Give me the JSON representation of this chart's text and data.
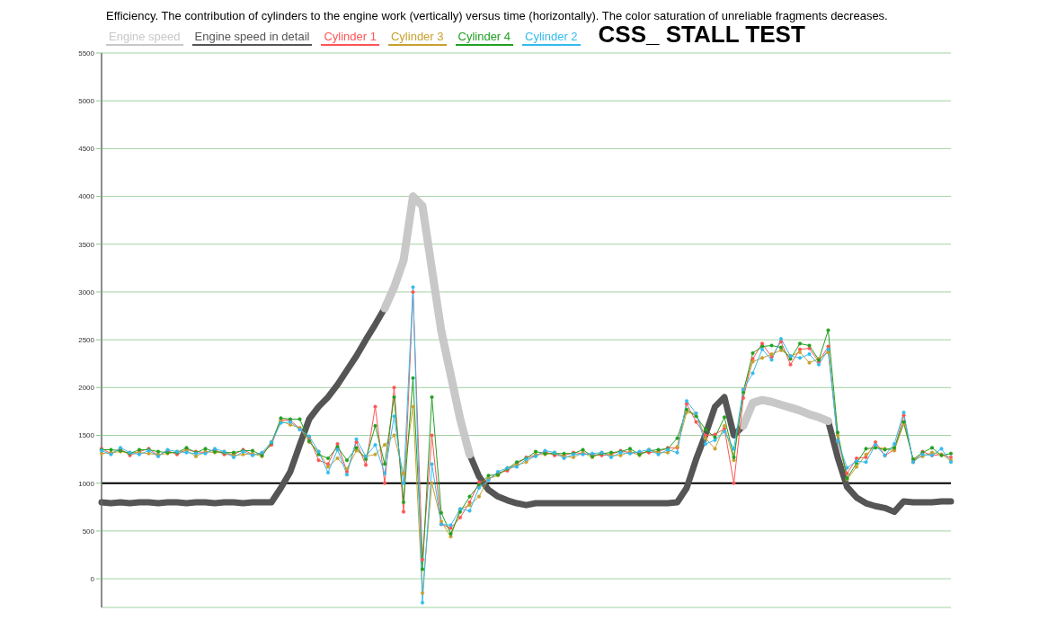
{
  "chart_data": {
    "type": "line",
    "title": "Efficiency. The contribution of cylinders to the engine work (vertically) versus time (horizontally). The color saturation of unreliable fragments decreases.",
    "subtitle": "CSS_ STALL TEST",
    "categories": [
      null,
      null,
      null,
      null,
      null,
      null,
      null,
      null,
      null,
      null,
      null,
      null,
      null,
      null,
      null,
      null,
      null,
      null,
      null,
      null,
      null,
      null,
      null,
      null,
      null,
      null,
      null,
      null,
      null,
      null,
      null,
      null,
      null,
      null,
      null,
      null,
      null,
      null,
      null,
      null,
      null,
      null,
      null,
      null,
      null,
      null,
      null,
      null,
      null,
      null,
      null,
      null,
      null,
      null,
      null,
      null,
      null,
      null,
      null,
      null,
      null,
      null,
      null,
      null,
      null,
      null,
      null,
      null,
      null,
      null,
      null,
      null,
      null,
      null,
      null,
      null,
      null,
      null,
      null,
      null,
      null,
      null,
      null,
      null,
      null,
      null,
      null,
      null,
      null,
      null,
      null
    ],
    "series": [
      {
        "name": "Engine speed",
        "color": "#c8c8c8",
        "marker": "none",
        "values": [
          null,
          null,
          null,
          null,
          null,
          null,
          null,
          null,
          null,
          null,
          null,
          null,
          null,
          null,
          null,
          null,
          null,
          null,
          null,
          null,
          null,
          null,
          null,
          null,
          null,
          null,
          null,
          null,
          null,
          null,
          2830,
          3050,
          3330,
          4000,
          3900,
          3240,
          2590,
          2130,
          1670,
          1300,
          null,
          null,
          null,
          null,
          null,
          null,
          null,
          null,
          null,
          null,
          null,
          null,
          null,
          null,
          null,
          null,
          null,
          null,
          null,
          null,
          null,
          null,
          null,
          null,
          null,
          null,
          null,
          null,
          1600,
          1840,
          1870,
          1850,
          1820,
          1790,
          1760,
          1720,
          1690,
          1650,
          null,
          null,
          null,
          null,
          null,
          null,
          null,
          null,
          null,
          null,
          null,
          null,
          null
        ]
      },
      {
        "name": "Engine speed in detail",
        "color": "#555555",
        "marker": "none",
        "values": [
          800,
          790,
          800,
          790,
          800,
          800,
          790,
          800,
          800,
          790,
          800,
          800,
          790,
          800,
          800,
          790,
          800,
          800,
          800,
          950,
          1120,
          1400,
          1670,
          1800,
          1900,
          2030,
          2180,
          2330,
          2500,
          2660,
          2830,
          null,
          null,
          null,
          null,
          null,
          null,
          null,
          null,
          1300,
          1070,
          930,
          860,
          820,
          790,
          770,
          790,
          790,
          790,
          790,
          790,
          790,
          790,
          790,
          790,
          790,
          790,
          790,
          790,
          790,
          790,
          800,
          950,
          1250,
          1510,
          1800,
          1900,
          1500,
          1600,
          null,
          null,
          null,
          null,
          null,
          null,
          null,
          null,
          1650,
          1270,
          960,
          850,
          790,
          760,
          740,
          700,
          810,
          800,
          800,
          800,
          810,
          810
        ]
      },
      {
        "name": "Cylinder 1",
        "color": "#ff5555",
        "values": [
          1360,
          1310,
          1360,
          1290,
          1330,
          1360,
          1290,
          1340,
          1300,
          1350,
          1330,
          1320,
          1350,
          1300,
          1300,
          1350,
          1300,
          1310,
          1400,
          1660,
          1660,
          1570,
          1480,
          1240,
          1200,
          1410,
          1120,
          1430,
          1190,
          1800,
          1000,
          2000,
          700,
          3000,
          200,
          1500,
          570,
          530,
          640,
          800,
          1010,
          1040,
          1110,
          1130,
          1200,
          1270,
          1290,
          1330,
          1290,
          1290,
          1320,
          1310,
          1300,
          1290,
          1300,
          1340,
          1320,
          1320,
          1320,
          1330,
          1370,
          1370,
          1830,
          1640,
          1500,
          1510,
          1570,
          1000,
          1890,
          2300,
          2460,
          2320,
          2480,
          2240,
          2400,
          2410,
          2270,
          2430,
          1440,
          1100,
          1260,
          1270,
          1430,
          1290,
          1350,
          1710,
          1220,
          1330,
          1290,
          1300,
          1270
        ]
      },
      {
        "name": "Cylinder 3",
        "color": "#c8a030",
        "values": [
          1310,
          1320,
          1330,
          1320,
          1320,
          1310,
          1300,
          1310,
          1330,
          1340,
          1280,
          1330,
          1320,
          1330,
          1290,
          1300,
          1310,
          1280,
          1430,
          1650,
          1610,
          1580,
          1430,
          1330,
          1170,
          1260,
          1150,
          1340,
          1280,
          1300,
          1400,
          1500,
          1100,
          1800,
          -150,
          1000,
          600,
          440,
          730,
          770,
          860,
          1050,
          1080,
          1160,
          1190,
          1220,
          1300,
          1300,
          1320,
          1280,
          1270,
          1320,
          1270,
          1320,
          1290,
          1290,
          1330,
          1290,
          1350,
          1320,
          1320,
          1380,
          1740,
          1730,
          1470,
          1360,
          1600,
          1240,
          1980,
          2270,
          2310,
          2350,
          2390,
          2330,
          2370,
          2260,
          2300,
          2370,
          1500,
          1040,
          1170,
          1300,
          1380,
          1360,
          1340,
          1620,
          1250,
          1280,
          1320,
          1300,
          1240
        ]
      },
      {
        "name": "Cylinder 4",
        "color": "#22a022",
        "values": [
          1350,
          1350,
          1340,
          1310,
          1350,
          1350,
          1330,
          1320,
          1320,
          1370,
          1320,
          1360,
          1330,
          1320,
          1320,
          1340,
          1340,
          1290,
          1420,
          1680,
          1670,
          1670,
          1440,
          1300,
          1260,
          1380,
          1240,
          1370,
          1250,
          1600,
          1200,
          1900,
          800,
          2100,
          100,
          1900,
          690,
          470,
          700,
          860,
          980,
          1080,
          1090,
          1150,
          1220,
          1260,
          1330,
          1310,
          1310,
          1310,
          1310,
          1350,
          1280,
          1310,
          1320,
          1330,
          1360,
          1300,
          1340,
          1350,
          1360,
          1470,
          1770,
          1700,
          1560,
          1480,
          1690,
          1270,
          1950,
          2360,
          2430,
          2440,
          2420,
          2300,
          2460,
          2440,
          2290,
          2600,
          1530,
          1050,
          1210,
          1360,
          1370,
          1350,
          1370,
          1640,
          1250,
          1320,
          1370,
          1290,
          1310
        ]
      },
      {
        "name": "Cylinder 2",
        "color": "#33bbee",
        "values": [
          1340,
          1300,
          1370,
          1320,
          1300,
          1340,
          1280,
          1350,
          1330,
          1320,
          1310,
          1310,
          1360,
          1330,
          1270,
          1330,
          1290,
          1320,
          1430,
          1630,
          1640,
          1560,
          1490,
          1330,
          1110,
          1350,
          1090,
          1460,
          1280,
          1400,
          1100,
          1700,
          1000,
          3050,
          -250,
          1200,
          570,
          560,
          730,
          710,
          950,
          1030,
          1120,
          1160,
          1170,
          1250,
          1280,
          1340,
          1320,
          1260,
          1300,
          1300,
          1310,
          1320,
          1270,
          1320,
          1310,
          1330,
          1350,
          1300,
          1350,
          1320,
          1860,
          1730,
          1410,
          1450,
          1540,
          1360,
          1980,
          2150,
          2400,
          2290,
          2510,
          2330,
          2310,
          2350,
          2240,
          2400,
          1440,
          1160,
          1230,
          1220,
          1400,
          1290,
          1410,
          1740,
          1220,
          1300,
          1290,
          1360,
          1220
        ]
      }
    ],
    "ylim": [
      -300,
      5500
    ],
    "yticks": [
      0,
      500,
      1000,
      1500,
      2000,
      2500,
      3000,
      3500,
      4000,
      4500,
      5000,
      5500
    ],
    "ref_lines": [
      {
        "axis": "y",
        "value": 1000,
        "color": "#000000"
      }
    ],
    "grid": "y",
    "legend": "top left",
    "marker": "circle",
    "tick_labels": "y"
  }
}
